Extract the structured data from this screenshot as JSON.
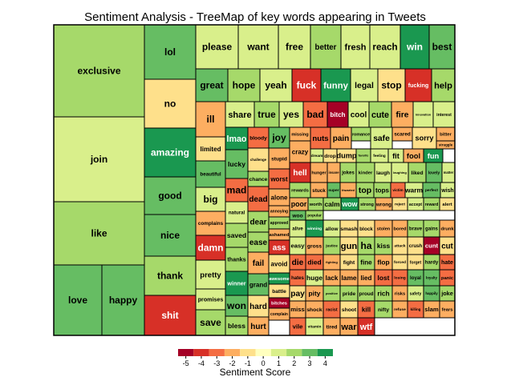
{
  "chart_data": {
    "type": "treemap",
    "title": "Sentiment Analysis - TreeMap of key words appearing in Tweets",
    "legend": {
      "title": "Sentiment Score",
      "ticks": [
        "-5",
        "-4",
        "-3",
        "-2",
        "-1",
        "0",
        "1",
        "2",
        "3",
        "4"
      ],
      "colors": [
        "#a50026",
        "#d73027",
        "#f46d43",
        "#fdae61",
        "#fee08b",
        "#ffffbf",
        "#d9ef8b",
        "#a6d96a",
        "#66bd63",
        "#1a9850"
      ]
    },
    "words": [
      {
        "word": "exclusive",
        "score": 2
      },
      {
        "word": "join",
        "score": 1
      },
      {
        "word": "like",
        "score": 2
      },
      {
        "word": "love",
        "score": 3
      },
      {
        "word": "happy",
        "score": 3
      },
      {
        "word": "lol",
        "score": 3
      },
      {
        "word": "no",
        "score": -1
      },
      {
        "word": "amazing",
        "score": 4
      },
      {
        "word": "good",
        "score": 3
      },
      {
        "word": "nice",
        "score": 3
      },
      {
        "word": "thank",
        "score": 2
      },
      {
        "word": "shit",
        "score": -4
      },
      {
        "word": "please",
        "score": 1
      },
      {
        "word": "want",
        "score": 1
      },
      {
        "word": "free",
        "score": 1
      },
      {
        "word": "better",
        "score": 2
      },
      {
        "word": "fresh",
        "score": 1
      },
      {
        "word": "reach",
        "score": 1
      },
      {
        "word": "win",
        "score": 4
      },
      {
        "word": "best",
        "score": 3
      },
      {
        "word": "great",
        "score": 3
      },
      {
        "word": "hope",
        "score": 2
      },
      {
        "word": "yeah",
        "score": 1
      },
      {
        "word": "fuck",
        "score": -4
      },
      {
        "word": "funny",
        "score": 4
      },
      {
        "word": "legal",
        "score": 1
      },
      {
        "word": "stop",
        "score": -1
      },
      {
        "word": "fucking",
        "score": -4
      },
      {
        "word": "help",
        "score": 2
      },
      {
        "word": "ill",
        "score": -2
      },
      {
        "word": "share",
        "score": 1
      },
      {
        "word": "true",
        "score": 2
      },
      {
        "word": "yes",
        "score": 1
      },
      {
        "word": "bad",
        "score": -3
      },
      {
        "word": "bitch",
        "score": -5
      },
      {
        "word": "cool",
        "score": 1
      },
      {
        "word": "cute",
        "score": 2
      },
      {
        "word": "fire",
        "score": -2
      },
      {
        "word": "innovation",
        "score": 1
      },
      {
        "word": "interest",
        "score": 1
      },
      {
        "word": "limited",
        "score": -1
      },
      {
        "word": "beautiful",
        "score": 3
      },
      {
        "word": "big",
        "score": 1
      },
      {
        "word": "complains",
        "score": -2
      },
      {
        "word": "damn",
        "score": -4
      },
      {
        "word": "pretty",
        "score": 1
      },
      {
        "word": "promises",
        "score": 1
      },
      {
        "word": "save",
        "score": 2
      },
      {
        "word": "lmao",
        "score": 4
      },
      {
        "word": "lucky",
        "score": 3
      },
      {
        "word": "mad",
        "score": -3
      },
      {
        "word": "natural",
        "score": 1
      },
      {
        "word": "saved",
        "score": 2
      },
      {
        "word": "thanks",
        "score": 2
      },
      {
        "word": "winner",
        "score": 4
      },
      {
        "word": "won",
        "score": 3
      },
      {
        "word": "bless",
        "score": 2
      },
      {
        "word": "bloody",
        "score": -3
      },
      {
        "word": "challenge",
        "score": -1
      },
      {
        "word": "chance",
        "score": 2
      },
      {
        "word": "dead",
        "score": -3
      },
      {
        "word": "dear",
        "score": 2
      },
      {
        "word": "ease",
        "score": 2
      },
      {
        "word": "fail",
        "score": -2
      },
      {
        "word": "grand",
        "score": 3
      },
      {
        "word": "hard",
        "score": -1
      },
      {
        "word": "hurt",
        "score": -2
      },
      {
        "word": "joy",
        "score": 3
      },
      {
        "word": "stupid",
        "score": -2
      },
      {
        "word": "worst",
        "score": -3
      },
      {
        "word": "alone",
        "score": -2
      },
      {
        "word": "annoying",
        "score": -2
      },
      {
        "word": "approved",
        "score": 2
      },
      {
        "word": "ashamed",
        "score": -2
      },
      {
        "word": "ass",
        "score": -4
      },
      {
        "word": "avoid",
        "score": -1
      },
      {
        "word": "awesome",
        "score": 4
      },
      {
        "word": "battle",
        "score": -1
      },
      {
        "word": "bitches",
        "score": -5
      },
      {
        "word": "complain",
        "score": -2
      },
      {
        "word": "missing",
        "score": -2
      },
      {
        "word": "nuts",
        "score": -3
      },
      {
        "word": "pain",
        "score": -2
      },
      {
        "word": "romance",
        "score": 2
      },
      {
        "word": "safe",
        "score": 1
      },
      {
        "word": "scared",
        "score": -2
      },
      {
        "word": "sorry",
        "score": -1
      },
      {
        "word": "bitter",
        "score": -2
      },
      {
        "word": "struggle",
        "score": -2
      },
      {
        "word": "crazy",
        "score": -2
      },
      {
        "word": "dream",
        "score": 1
      },
      {
        "word": "drop",
        "score": -1
      },
      {
        "word": "dump",
        "score": -1
      },
      {
        "word": "favorite",
        "score": 2
      },
      {
        "word": "feeling",
        "score": 1
      },
      {
        "word": "fit",
        "score": 1
      },
      {
        "word": "fool",
        "score": -2
      },
      {
        "word": "fun",
        "score": 4
      },
      {
        "word": "hell",
        "score": -4
      },
      {
        "word": "hunger",
        "score": -2
      },
      {
        "word": "insane",
        "score": -2
      },
      {
        "word": "jokes",
        "score": 2
      },
      {
        "word": "kinder",
        "score": 2
      },
      {
        "word": "laugh",
        "score": 1
      },
      {
        "word": "laughing",
        "score": 1
      },
      {
        "word": "liked",
        "score": 2
      },
      {
        "word": "lovely",
        "score": 3
      },
      {
        "word": "matter",
        "score": 1
      },
      {
        "word": "rewards",
        "score": 2
      },
      {
        "word": "stuck",
        "score": -2
      },
      {
        "word": "super",
        "score": 3
      },
      {
        "word": "thwarted",
        "score": -2
      },
      {
        "word": "top",
        "score": 2
      },
      {
        "word": "tops",
        "score": 2
      },
      {
        "word": "victim",
        "score": -3
      },
      {
        "word": "warm",
        "score": 1
      },
      {
        "word": "perfect",
        "score": 3
      },
      {
        "word": "wish",
        "score": 1
      },
      {
        "word": "poor",
        "score": -2
      },
      {
        "word": "woo",
        "score": 3
      },
      {
        "word": "popular",
        "score": 2
      },
      {
        "word": "worth",
        "score": 2
      },
      {
        "word": "calm",
        "score": 2
      },
      {
        "word": "wow",
        "score": 4
      },
      {
        "word": "strong",
        "score": 2
      },
      {
        "word": "wrong",
        "score": -2
      },
      {
        "word": "reject",
        "score": -1
      },
      {
        "word": "accept",
        "score": 1
      },
      {
        "word": "reward",
        "score": 2
      },
      {
        "word": "alert",
        "score": -1
      },
      {
        "word": "alive",
        "score": 1
      },
      {
        "word": "winning",
        "score": 4
      },
      {
        "word": "allow",
        "score": 1
      },
      {
        "word": "smash",
        "score": -1
      },
      {
        "word": "block",
        "score": -1
      },
      {
        "word": "stolen",
        "score": -2
      },
      {
        "word": "bored",
        "score": -2
      },
      {
        "word": "brave",
        "score": 2
      },
      {
        "word": "gains",
        "score": 2
      },
      {
        "word": "drunk",
        "score": -2
      },
      {
        "word": "easy",
        "score": 1
      },
      {
        "word": "gross",
        "score": -2
      },
      {
        "word": "justice",
        "score": 2
      },
      {
        "word": "gun",
        "score": -1
      },
      {
        "word": "ha",
        "score": 2
      },
      {
        "word": "kiss",
        "score": 2
      },
      {
        "word": "attack",
        "score": -1
      },
      {
        "word": "crush",
        "score": -1
      },
      {
        "word": "cunt",
        "score": -5
      },
      {
        "word": "cut",
        "score": -1
      },
      {
        "word": "die",
        "score": -3
      },
      {
        "word": "died",
        "score": -3
      },
      {
        "word": "fighting",
        "score": -2
      },
      {
        "word": "fight",
        "score": -1
      },
      {
        "word": "fine",
        "score": 2
      },
      {
        "word": "flop",
        "score": -2
      },
      {
        "word": "forced",
        "score": -1
      },
      {
        "word": "forget",
        "score": -1
      },
      {
        "word": "hardy",
        "score": 2
      },
      {
        "word": "hate",
        "score": -3
      },
      {
        "word": "hates",
        "score": -3
      },
      {
        "word": "huge",
        "score": 1
      },
      {
        "word": "lack",
        "score": -2
      },
      {
        "word": "lame",
        "score": -2
      },
      {
        "word": "lied",
        "score": -2
      },
      {
        "word": "lost",
        "score": -3
      },
      {
        "word": "losing",
        "score": -3
      },
      {
        "word": "loyal",
        "score": 3
      },
      {
        "word": "loyalty",
        "score": 3
      },
      {
        "word": "panic",
        "score": -3
      },
      {
        "word": "pay",
        "score": -1
      },
      {
        "word": "pity",
        "score": -2
      },
      {
        "word": "positive",
        "score": 2
      },
      {
        "word": "pride",
        "score": 2
      },
      {
        "word": "proud",
        "score": 2
      },
      {
        "word": "rich",
        "score": 2
      },
      {
        "word": "risks",
        "score": -2
      },
      {
        "word": "safety",
        "score": 1
      },
      {
        "word": "happily",
        "score": 3
      },
      {
        "word": "joke",
        "score": 2
      },
      {
        "word": "miss",
        "score": -2
      },
      {
        "word": "shock",
        "score": -2
      },
      {
        "word": "racist",
        "score": -3
      },
      {
        "word": "shoot",
        "score": -1
      },
      {
        "word": "kill",
        "score": -3
      },
      {
        "word": "nifty",
        "score": 2
      },
      {
        "word": "refuse",
        "score": -2
      },
      {
        "word": "killing",
        "score": -3
      },
      {
        "word": "slam",
        "score": -2
      },
      {
        "word": "fears",
        "score": -2
      },
      {
        "word": "vile",
        "score": -3
      },
      {
        "word": "vitamin",
        "score": 1
      },
      {
        "word": "tired",
        "score": -2
      },
      {
        "word": "war",
        "score": -2
      },
      {
        "word": "wtf",
        "score": -4
      }
    ]
  }
}
